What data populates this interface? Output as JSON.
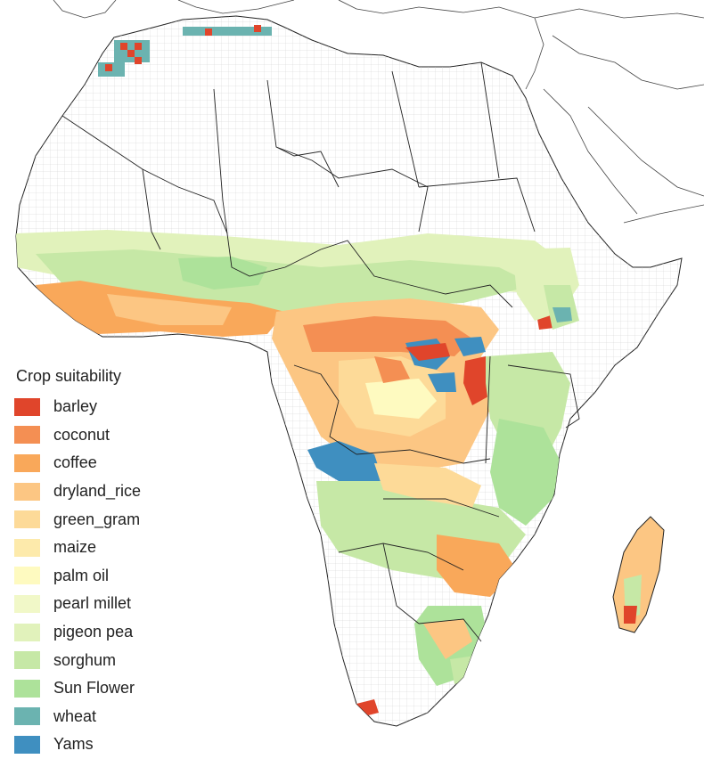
{
  "legend": {
    "title": "Crop suitability",
    "items": [
      {
        "label": "barley",
        "color": "#e0452b"
      },
      {
        "label": "coconut",
        "color": "#f48f53"
      },
      {
        "label": "coffee",
        "color": "#f9a85a"
      },
      {
        "label": "dryland_rice",
        "color": "#fcc683"
      },
      {
        "label": "green_gram",
        "color": "#fdda98"
      },
      {
        "label": "maize",
        "color": "#fdeaab"
      },
      {
        "label": "palm oil",
        "color": "#fefac0"
      },
      {
        "label": "pearl millet",
        "color": "#f1f8c8"
      },
      {
        "label": "pigeon pea",
        "color": "#e1f2bb"
      },
      {
        "label": "sorghum",
        "color": "#c6e8a6"
      },
      {
        "label": "Sun Flower",
        "color": "#ade29a"
      },
      {
        "label": "wheat",
        "color": "#6bb3b0"
      },
      {
        "label": "Yams",
        "color": "#3f8fc0"
      }
    ]
  }
}
